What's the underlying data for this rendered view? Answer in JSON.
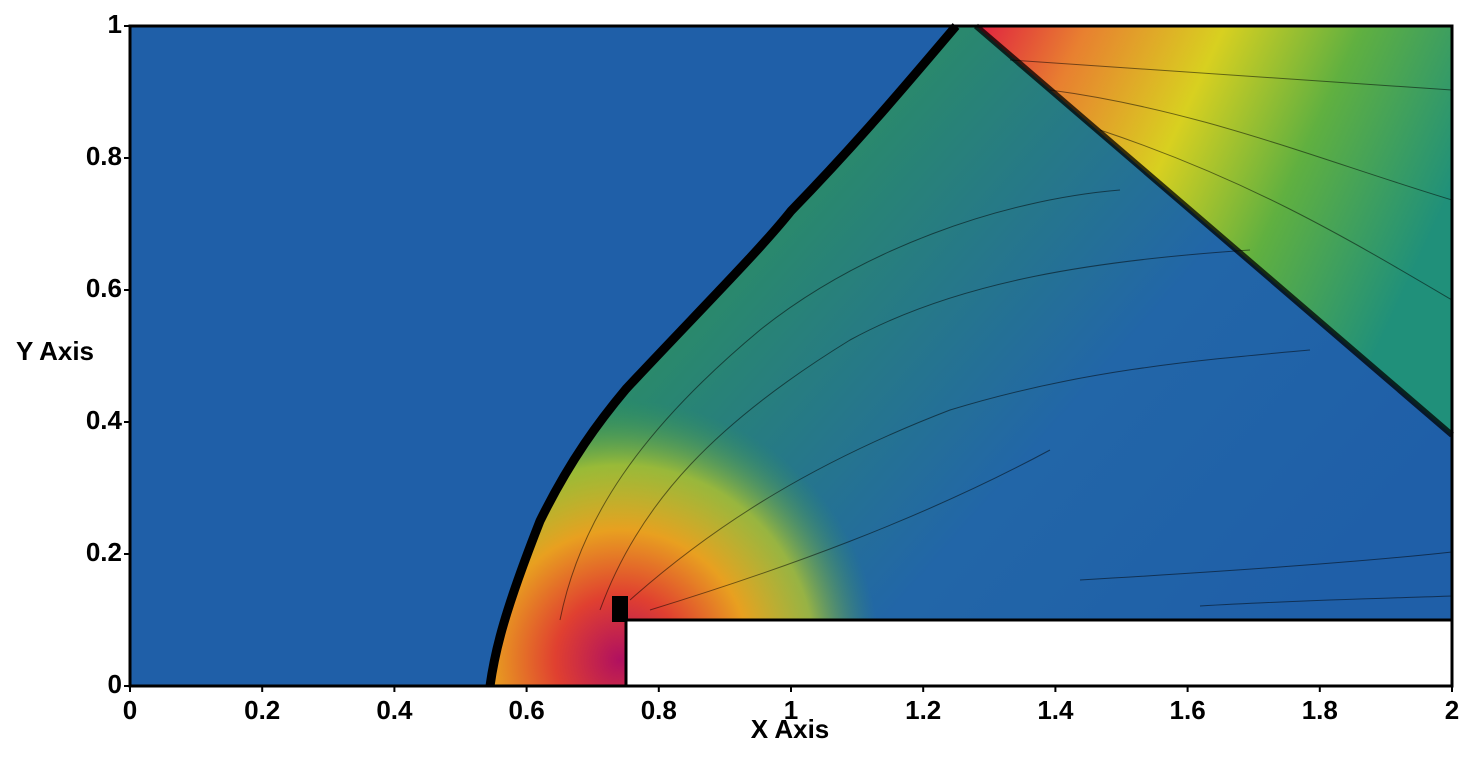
{
  "chart_data": {
    "type": "contour",
    "x_label": "X Axis",
    "y_label": "Y Axis",
    "xlim": [
      0,
      2
    ],
    "ylim": [
      0,
      1
    ],
    "xticks": [
      0,
      0.2,
      0.4,
      0.6,
      0.8,
      1,
      1.2,
      1.4,
      1.6,
      1.8,
      2
    ],
    "yticks": [
      0,
      0.2,
      0.4,
      0.6,
      0.8,
      1
    ]
  }
}
